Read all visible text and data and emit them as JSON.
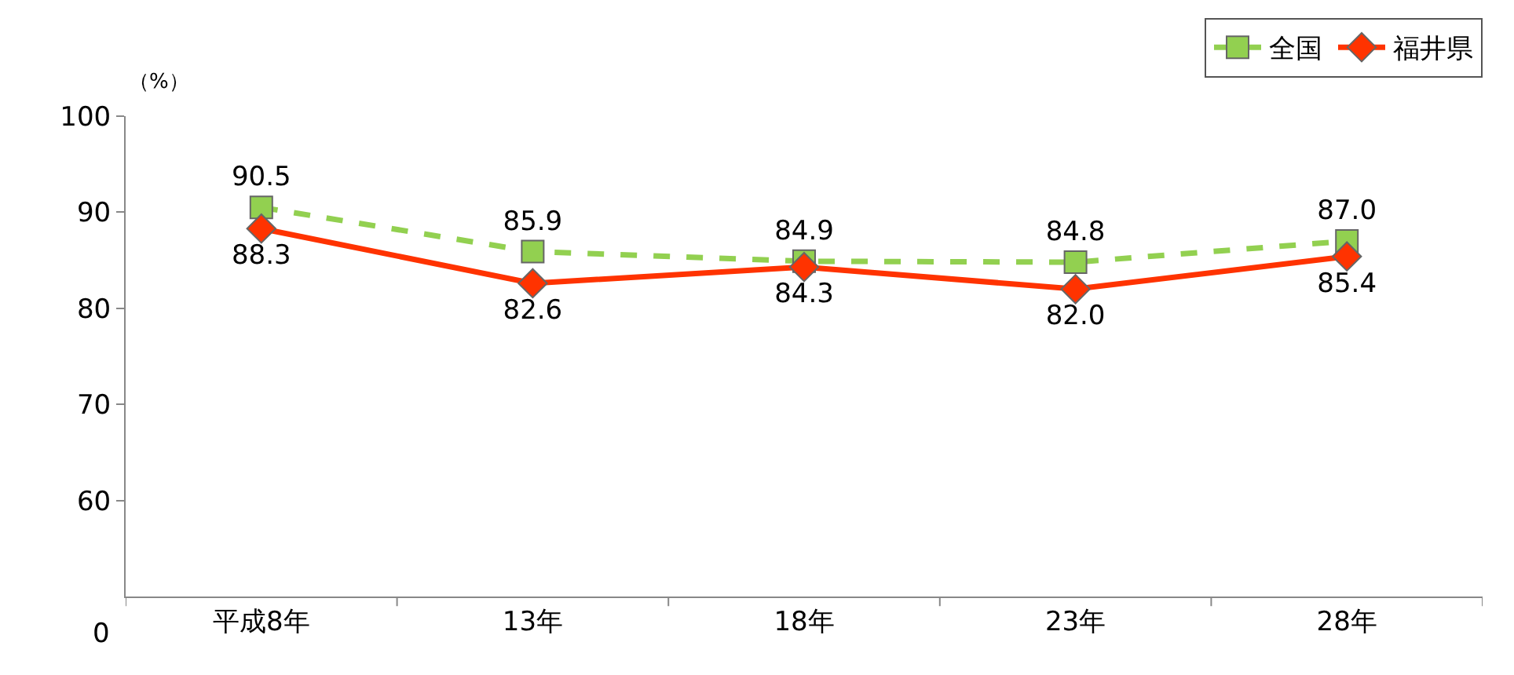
{
  "chart_data": {
    "type": "line",
    "ylabel": "（%）",
    "categories": [
      "平成8年",
      "13年",
      "18年",
      "23年",
      "28年"
    ],
    "series": [
      {
        "name": "全国",
        "color": "#92d050",
        "values": [
          90.5,
          85.9,
          84.9,
          84.8,
          87.0
        ],
        "value_labels": [
          "90.5",
          "85.9",
          "84.9",
          "84.8",
          "87.0"
        ],
        "marker": "square",
        "line_style": "dashed"
      },
      {
        "name": "福井県",
        "color": "#ff3300",
        "values": [
          88.3,
          82.6,
          84.3,
          82.0,
          85.4
        ],
        "value_labels": [
          "88.3",
          "82.6",
          "84.3",
          "82.0",
          "85.4"
        ],
        "marker": "diamond",
        "line_style": "solid"
      }
    ],
    "ylim": [
      50,
      100
    ],
    "yticks": [
      60,
      70,
      80,
      90,
      100
    ],
    "annotations": [
      "0"
    ],
    "legend": "top right"
  }
}
